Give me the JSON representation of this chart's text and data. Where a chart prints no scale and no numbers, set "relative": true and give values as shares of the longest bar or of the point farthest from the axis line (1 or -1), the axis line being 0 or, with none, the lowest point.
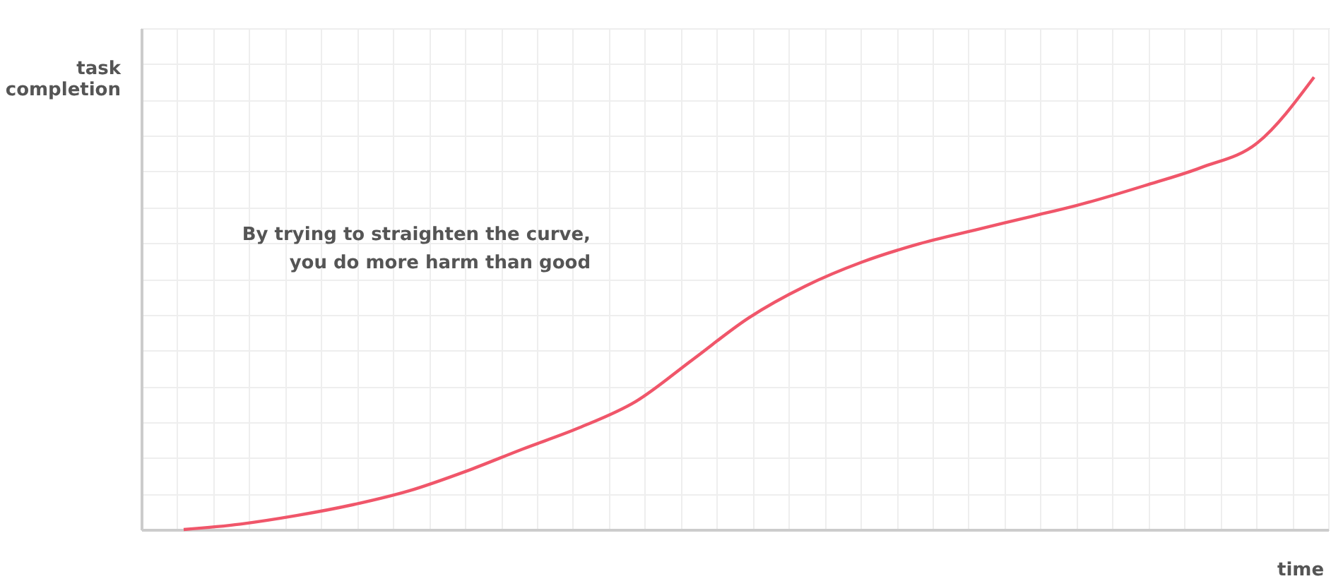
{
  "chart_data": {
    "type": "line",
    "relative": true,
    "xlabel": "time",
    "ylabel": "task\ncompletion",
    "annotations": [
      "By trying to straighten the curve,\nyou do more harm than good"
    ],
    "categories": [
      null,
      null,
      null,
      null,
      null,
      null,
      null,
      null,
      null,
      null,
      null,
      null,
      null,
      null,
      null,
      null,
      null,
      null,
      null,
      null,
      null
    ],
    "series": [
      {
        "color": "#f0566a",
        "values": [
          0,
          0.012,
          0.031,
          0.055,
          0.086,
          0.129,
          0.178,
          0.225,
          0.283,
          0.375,
          0.468,
          0.538,
          0.591,
          0.631,
          0.662,
          0.692,
          0.723,
          0.76,
          0.8,
          0.855,
          1
        ]
      }
    ],
    "grid": true,
    "tick_labels": false
  }
}
